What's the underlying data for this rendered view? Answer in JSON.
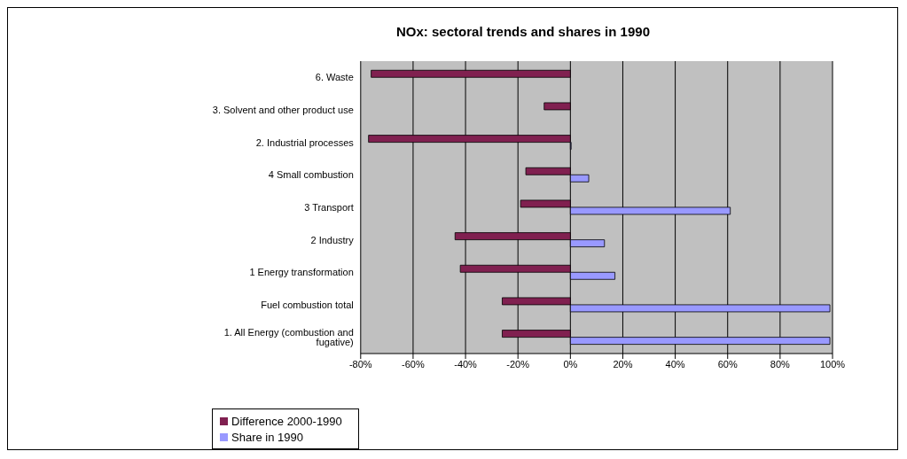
{
  "chart_data": {
    "type": "bar",
    "orientation": "horizontal",
    "title": "NOx: sectoral trends and shares in 1990",
    "categories": [
      "6. Waste",
      "3. Solvent and other product use",
      "2. Industrial processes",
      "4 Small combustion",
      "3 Transport",
      "2 Industry",
      "1 Energy transformation",
      "Fuel combustion   total",
      "1. All Energy (combustion and fugative)"
    ],
    "series": [
      {
        "name": "Difference 2000-1990",
        "color": "#802050",
        "values": [
          -76,
          -10,
          -77,
          -17,
          -19,
          -44,
          -42,
          -26,
          -26
        ]
      },
      {
        "name": "Share in 1990",
        "color": "#9999ff",
        "values": [
          null,
          null,
          0.3,
          7,
          61,
          13,
          17,
          99,
          99
        ]
      }
    ],
    "xlim": [
      -80,
      100
    ],
    "xticks": [
      {
        "value": -80,
        "label": "-80%"
      },
      {
        "value": -60,
        "label": "-60%"
      },
      {
        "value": -40,
        "label": "-40%"
      },
      {
        "value": -20,
        "label": "-20%"
      },
      {
        "value": 0,
        "label": "0%"
      },
      {
        "value": 20,
        "label": "20%"
      },
      {
        "value": 40,
        "label": "40%"
      },
      {
        "value": 60,
        "label": "60%"
      },
      {
        "value": 80,
        "label": "80%"
      },
      {
        "value": 100,
        "label": "100%"
      }
    ],
    "grid": "x",
    "legend": "bottom left"
  }
}
